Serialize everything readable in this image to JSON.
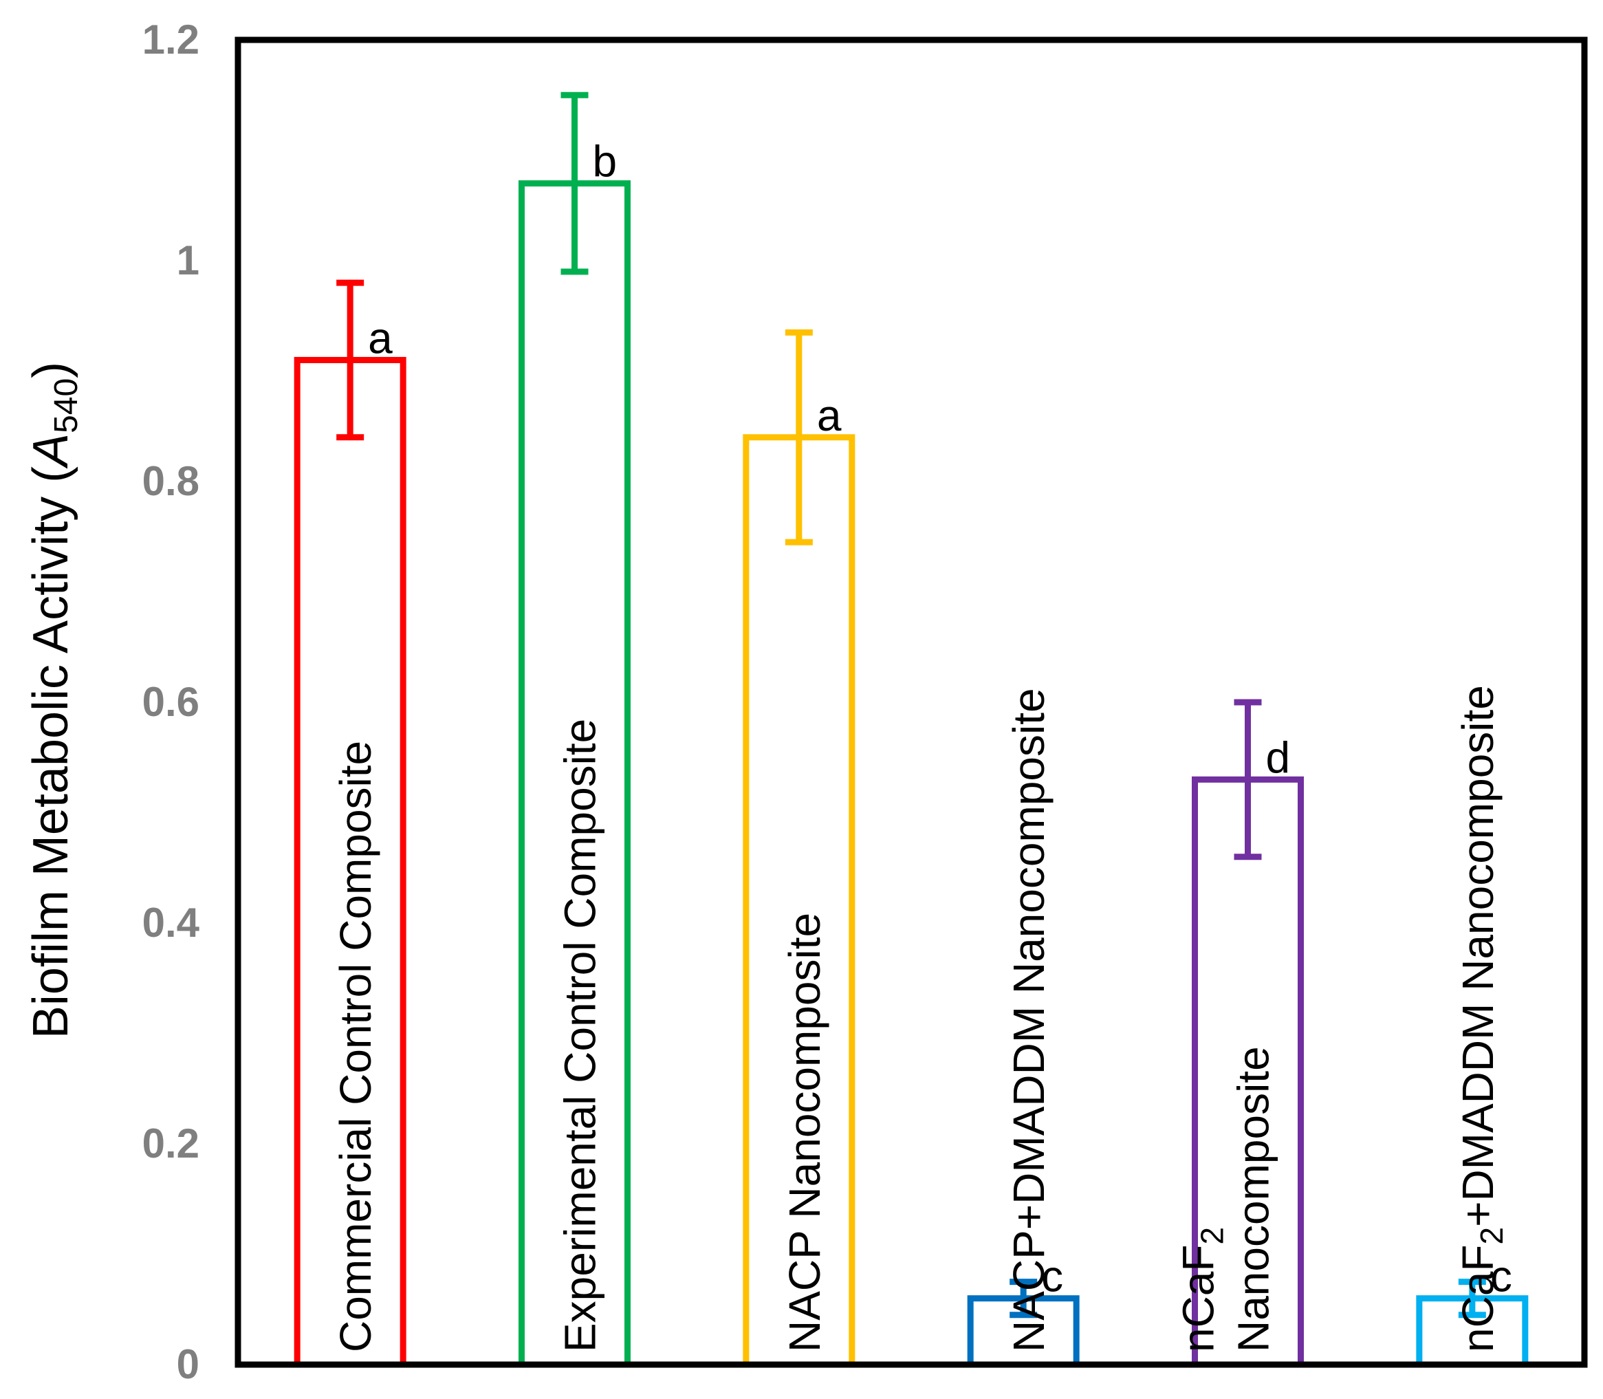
{
  "chart_data": {
    "type": "bar",
    "title": "",
    "xlabel": "",
    "ylabel": {
      "main": "Biofilm Metabolic Activity (",
      "var": "A",
      "sub": "540",
      "close": ")"
    },
    "ylim": [
      0,
      1.2
    ],
    "yticks": [
      0,
      0.2,
      0.4,
      0.6,
      0.8,
      1,
      1.2
    ],
    "ytick_labels": [
      "0",
      "0.2",
      "0.4",
      "0.6",
      "0.8",
      "1",
      "1.2"
    ],
    "grid": false,
    "legend": "none",
    "categories": [
      {
        "label": [
          "Commercial Control Composite"
        ],
        "value": 0.91,
        "error": 0.07,
        "significance": "a",
        "color": "#ff0000"
      },
      {
        "label": [
          "Experimental Control Composite"
        ],
        "value": 1.07,
        "error": 0.08,
        "significance": "b",
        "color": "#00b050"
      },
      {
        "label": [
          "NACP Nanocomposite"
        ],
        "value": 0.84,
        "error": 0.095,
        "significance": "a",
        "color": "#ffc000"
      },
      {
        "label": [
          "NACP+DMADDM Nanocomposite"
        ],
        "value": 0.06,
        "error": 0.015,
        "significance": "c",
        "color": "#0070c0"
      },
      {
        "label": [
          [
            {
              "t": "nCaF"
            },
            {
              "t": "2",
              "sub": true
            }
          ],
          [
            {
              "t": "Nanocomposite"
            }
          ]
        ],
        "value": 0.53,
        "error": 0.07,
        "significance": "d",
        "color": "#7030a0"
      },
      {
        "label": [
          [
            {
              "t": "nCaF"
            },
            {
              "t": "2",
              "sub": true
            },
            {
              "t": "+DMADDM Nanocomposite"
            }
          ]
        ],
        "value": 0.06,
        "error": 0.015,
        "significance": "c",
        "color": "#00b0f0"
      }
    ]
  }
}
